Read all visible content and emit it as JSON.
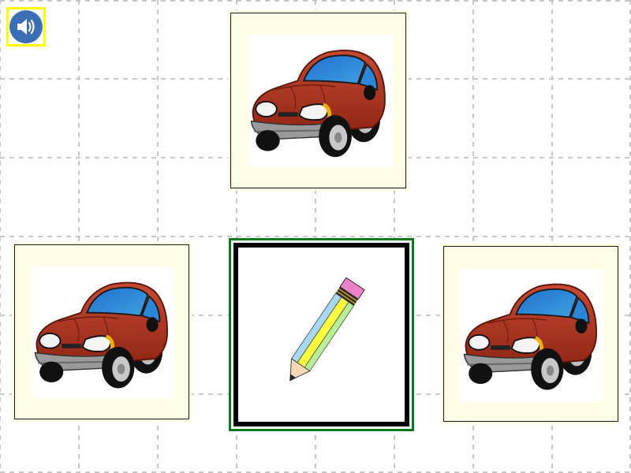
{
  "game": {
    "sound_button": {
      "icon": "speaker-icon",
      "border_color": "#ffff00",
      "fill_color": "#3a6fb5"
    },
    "cards": [
      {
        "name": "card-top",
        "picture": "red-car-icon"
      },
      {
        "name": "card-left",
        "picture": "red-car-icon"
      },
      {
        "name": "card-center",
        "picture": "pencil-icon",
        "highlight_color": "#0a7a1a"
      },
      {
        "name": "card-right",
        "picture": "red-car-icon"
      }
    ],
    "colors": {
      "grid_line": "#c8c8c8",
      "card_background": "#fffde6",
      "car_body": "#b8321e",
      "car_window": "#2f7fd0"
    }
  }
}
